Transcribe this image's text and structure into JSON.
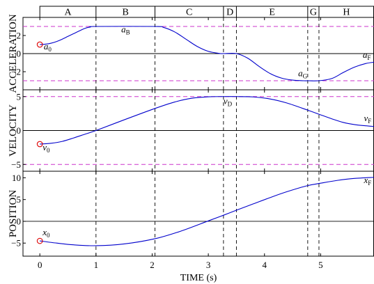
{
  "chart_data": {
    "type": "line",
    "xlabel": "TIME (s)",
    "xlim": [
      -0.3,
      5.95
    ],
    "x_ticks": [
      "0",
      "1",
      "2",
      "3",
      "4",
      "5"
    ],
    "phases": [
      {
        "label": "A",
        "t_start": 0.0,
        "t_end": 1.0
      },
      {
        "label": "B",
        "t_start": 1.0,
        "t_end": 2.05
      },
      {
        "label": "C",
        "t_start": 2.05,
        "t_end": 3.27
      },
      {
        "label": "D",
        "t_start": 3.27,
        "t_end": 3.5
      },
      {
        "label": "E",
        "t_start": 3.5,
        "t_end": 4.77
      },
      {
        "label": "G",
        "t_start": 4.77,
        "t_end": 4.97
      },
      {
        "label": "H",
        "t_start": 4.97,
        "t_end": 5.95
      }
    ],
    "panels": [
      {
        "ylabel": "ACCELERATION",
        "ylim": [
          -4,
          4
        ],
        "y_ticks": [
          "2",
          "0",
          "−2"
        ],
        "y_tick_values": [
          2,
          0,
          -2
        ],
        "limits": [
          3,
          -3
        ],
        "x": [
          0,
          0.1,
          0.2,
          0.3,
          0.4,
          0.5,
          0.6,
          0.7,
          0.8,
          0.9,
          1.0,
          2.05,
          2.2,
          2.4,
          2.6,
          2.8,
          3.0,
          3.2,
          3.27,
          3.5,
          3.7,
          3.9,
          4.1,
          4.3,
          4.5,
          4.7,
          4.77,
          4.97,
          5.2,
          5.4,
          5.6,
          5.8,
          5.95
        ],
        "y": [
          1.0,
          1.04,
          1.15,
          1.34,
          1.6,
          1.9,
          2.2,
          2.5,
          2.78,
          2.94,
          3.0,
          3.0,
          2.9,
          2.4,
          1.6,
          0.8,
          0.25,
          0.02,
          0.0,
          0.0,
          -0.5,
          -1.4,
          -2.2,
          -2.7,
          -2.93,
          -3.0,
          -3.0,
          -3.0,
          -2.75,
          -2.1,
          -1.5,
          -1.1,
          -0.95
        ],
        "annotations": [
          {
            "base": "a",
            "sub": "0",
            "x": 0.07,
            "y": 0.45
          },
          {
            "base": "a",
            "sub": "B",
            "x": 1.45,
            "y": 2.35
          },
          {
            "base": "a",
            "sub": "G",
            "x": 4.6,
            "y": -2.5
          },
          {
            "base": "a",
            "sub": "F",
            "x": 5.75,
            "y": -0.45
          }
        ]
      },
      {
        "ylabel": "VELOCITY",
        "ylim": [
          -6,
          6
        ],
        "y_ticks": [
          "5",
          "0",
          "−5"
        ],
        "y_tick_values": [
          5,
          0,
          -5
        ],
        "limits": [
          5,
          -5
        ],
        "x": [
          0,
          0.2,
          0.4,
          0.6,
          0.8,
          1.0,
          1.5,
          2.05,
          2.4,
          2.7,
          3.0,
          3.27,
          3.5,
          3.8,
          4.1,
          4.4,
          4.77,
          4.97,
          5.2,
          5.4,
          5.6,
          5.8,
          5.95
        ],
        "y": [
          -2.0,
          -1.88,
          -1.6,
          -1.1,
          -0.55,
          0.0,
          1.57,
          3.25,
          4.2,
          4.75,
          4.97,
          5.0,
          5.0,
          4.95,
          4.65,
          4.05,
          3.0,
          2.4,
          1.72,
          1.2,
          0.88,
          0.7,
          0.6
        ],
        "annotations": [
          {
            "base": "v",
            "sub": "0",
            "x": 0.05,
            "y": -2.9
          },
          {
            "base": "v",
            "sub": "D",
            "x": 3.27,
            "y": 3.9
          },
          {
            "base": "v",
            "sub": "F",
            "x": 5.77,
            "y": 1.4
          }
        ]
      },
      {
        "ylabel": "POSITION",
        "ylim": [
          -8,
          11.5
        ],
        "y_ticks": [
          "10",
          "5",
          "0",
          "−5"
        ],
        "y_tick_values": [
          10,
          5,
          0,
          -5
        ],
        "limits": [],
        "x": [
          0,
          0.3,
          0.6,
          1.0,
          1.5,
          2.05,
          2.5,
          3.0,
          3.27,
          3.5,
          3.8,
          4.1,
          4.4,
          4.77,
          5.0,
          5.3,
          5.6,
          5.95
        ],
        "y": [
          -4.5,
          -5.0,
          -5.4,
          -5.6,
          -5.2,
          -4.0,
          -2.3,
          0.1,
          1.4,
          2.55,
          4.0,
          5.45,
          6.8,
          8.2,
          8.75,
          9.4,
          9.85,
          10.1
        ],
        "annotations": [
          {
            "base": "x",
            "sub": "0",
            "x": 0.05,
            "y": -3.2
          },
          {
            "base": "x",
            "sub": "F",
            "x": 5.77,
            "y": 8.8
          }
        ]
      }
    ]
  },
  "colors": {
    "curve": "#0000cc",
    "limit": "#cc33cc",
    "marker": "#dd0000",
    "axis": "#000000",
    "zero": "#000000"
  }
}
